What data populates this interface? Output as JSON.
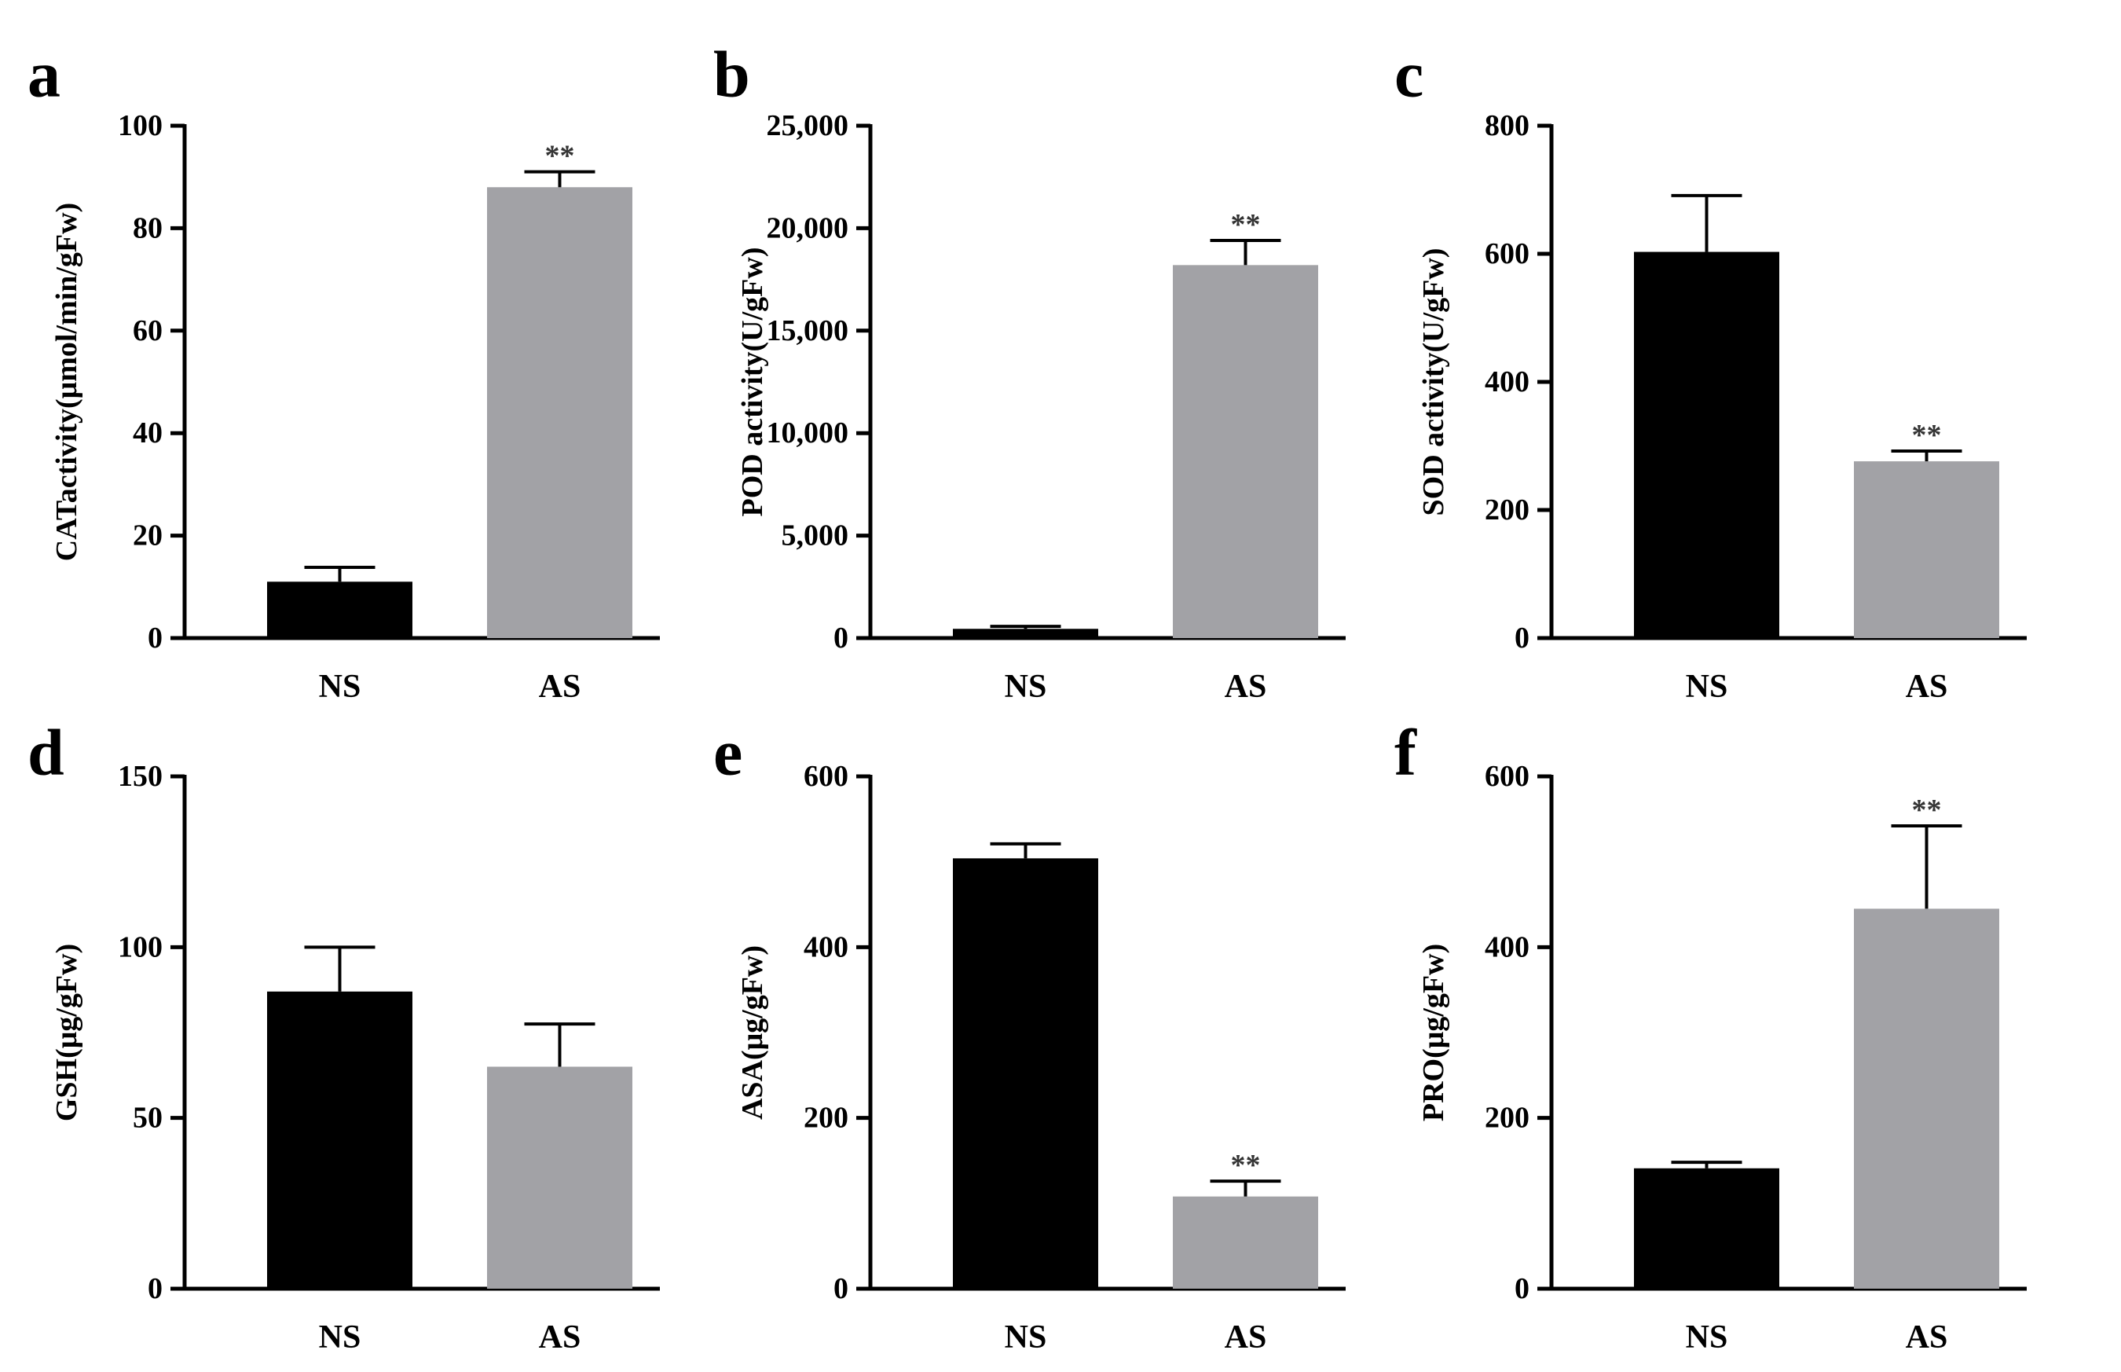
{
  "figure": {
    "colors": {
      "NS": "#000000",
      "AS": "#a2a2a6",
      "axis": "#000000"
    },
    "significance_marker": "**"
  },
  "chart_data": [
    {
      "panel": "a",
      "type": "bar",
      "categories": [
        "NS",
        "AS"
      ],
      "values": [
        11,
        88
      ],
      "errors": [
        2.8,
        3
      ],
      "significance": [
        "",
        "**"
      ],
      "ylabel": "CATactivity(μmol/min/gFw)",
      "ylim": [
        0,
        100
      ],
      "yticks": [
        0,
        20,
        40,
        60,
        80,
        100
      ],
      "ytick_labels": [
        "0",
        "20",
        "40",
        "60",
        "80",
        "100"
      ]
    },
    {
      "panel": "b",
      "type": "bar",
      "categories": [
        "NS",
        "AS"
      ],
      "values": [
        450,
        18200
      ],
      "errors": [
        120,
        1200
      ],
      "significance": [
        "",
        "**"
      ],
      "ylabel": "POD activity(U/gFw)",
      "ylim": [
        0,
        25000
      ],
      "yticks": [
        0,
        5000,
        10000,
        15000,
        20000,
        25000
      ],
      "ytick_labels": [
        "0",
        "5,000",
        "10,000",
        "15,000",
        "20,000",
        "25,000"
      ]
    },
    {
      "panel": "c",
      "type": "bar",
      "categories": [
        "NS",
        "AS"
      ],
      "values": [
        603,
        276
      ],
      "errors": [
        88,
        16
      ],
      "significance": [
        "",
        "**"
      ],
      "ylabel": "SOD activity(U/gFw)",
      "ylim": [
        0,
        800
      ],
      "yticks": [
        0,
        200,
        400,
        600,
        800
      ],
      "ytick_labels": [
        "0",
        "200",
        "400",
        "600",
        "800"
      ]
    },
    {
      "panel": "d",
      "type": "bar",
      "categories": [
        "NS",
        "AS"
      ],
      "values": [
        87,
        65
      ],
      "errors": [
        13,
        12.5
      ],
      "significance": [
        "",
        ""
      ],
      "ylabel": "GSH(μg/gFw)",
      "ylim": [
        0,
        150
      ],
      "yticks": [
        0,
        50,
        100,
        150
      ],
      "ytick_labels": [
        "0",
        "50",
        "100",
        "150"
      ]
    },
    {
      "panel": "e",
      "type": "bar",
      "categories": [
        "NS",
        "AS"
      ],
      "values": [
        504,
        108
      ],
      "errors": [
        17,
        18
      ],
      "significance": [
        "",
        "**"
      ],
      "ylabel": "ASA(μg/gFw)",
      "ylim": [
        0,
        600
      ],
      "yticks": [
        0,
        200,
        400,
        600
      ],
      "ytick_labels": [
        "0",
        "200",
        "400",
        "600"
      ]
    },
    {
      "panel": "f",
      "type": "bar",
      "categories": [
        "NS",
        "AS"
      ],
      "values": [
        141,
        445
      ],
      "errors": [
        7,
        97
      ],
      "significance": [
        "",
        "**"
      ],
      "ylabel": "PRO(μg/gFw)",
      "ylim": [
        0,
        600
      ],
      "yticks": [
        0,
        200,
        400,
        600
      ],
      "ytick_labels": [
        "0",
        "200",
        "400",
        "600"
      ]
    }
  ]
}
